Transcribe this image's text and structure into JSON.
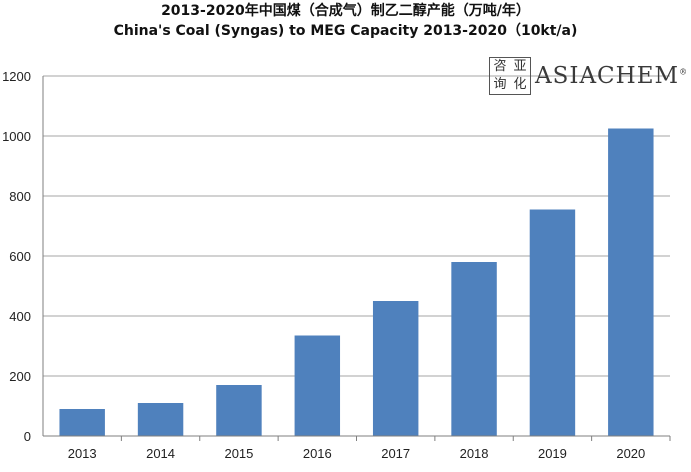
{
  "chart_data": {
    "type": "bar",
    "title": "2013-2020年中国煤（合成气）制乙二醇产能（万吨/年）",
    "subtitle": "China's Coal (Syngas) to MEG Capacity 2013-2020（10kt/a)",
    "categories": [
      "2013",
      "2014",
      "2015",
      "2016",
      "2017",
      "2018",
      "2019",
      "2020"
    ],
    "values": [
      90,
      110,
      170,
      335,
      450,
      580,
      755,
      1025
    ],
    "ylim": [
      0,
      1200
    ],
    "yticks": [
      0,
      200,
      400,
      600,
      800,
      1000,
      1200
    ],
    "grid": true,
    "bar_color": "#4f81bd",
    "grid_color": "#a6a6a6"
  },
  "logo": {
    "seal_chars": [
      "咨",
      "亚",
      "询",
      "化"
    ],
    "wordmark": "ASIACHEM",
    "registered_mark": "®"
  }
}
